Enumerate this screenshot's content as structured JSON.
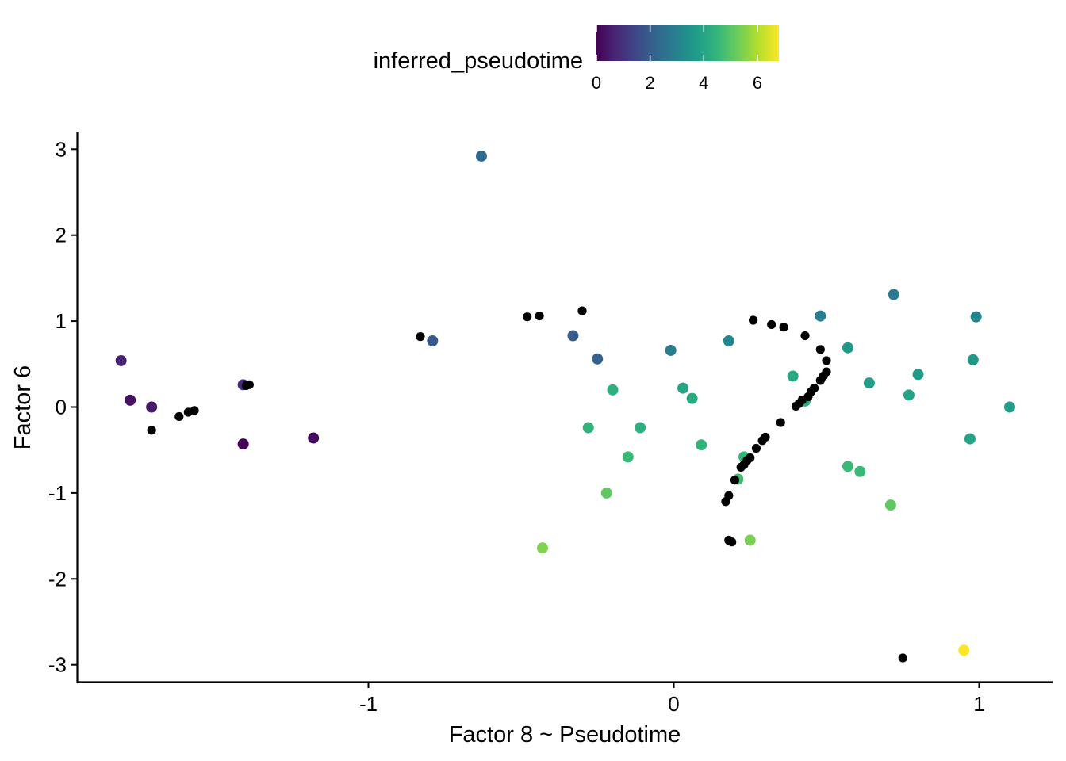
{
  "chart_data": {
    "type": "scatter",
    "title": "",
    "xlabel": "Factor 8  ~ Pseudotime",
    "ylabel": "Factor 6",
    "xlim": [
      -1.91,
      1.22
    ],
    "ylim": [
      -3.2,
      3.2
    ],
    "xticks": [
      -1,
      0,
      1
    ],
    "xtick_labels": [
      "-1",
      "0",
      "1"
    ],
    "yticks": [
      -3,
      -2,
      -1,
      0,
      1,
      2,
      3
    ],
    "ytick_labels": [
      "-3",
      "-2",
      "-1",
      "0",
      "1",
      "2",
      "3"
    ],
    "grid": false,
    "legend": {
      "title": "inferred_pseudotime",
      "placement": "top",
      "type": "colorbar",
      "range": [
        0,
        6.8
      ],
      "ticks": [
        0,
        2,
        4,
        6
      ],
      "tick_labels": [
        "0",
        "2",
        "4",
        "6"
      ],
      "colormap": "viridis",
      "stops": [
        "#440154",
        "#482878",
        "#3E4A89",
        "#31688E",
        "#26828E",
        "#1F9E89",
        "#35B779",
        "#6DCD59",
        "#B4DE2C",
        "#FDE725"
      ]
    },
    "black_color": "#000000",
    "colored_points": [
      {
        "x": -1.81,
        "y": 0.54,
        "t": 0.7
      },
      {
        "x": -1.78,
        "y": 0.08,
        "t": 0.3
      },
      {
        "x": -1.71,
        "y": 0.0,
        "t": 0.5
      },
      {
        "x": -1.41,
        "y": 0.26,
        "t": 0.8
      },
      {
        "x": -1.41,
        "y": -0.43,
        "t": 0.1
      },
      {
        "x": -1.18,
        "y": -0.36,
        "t": 0.2
      },
      {
        "x": -0.79,
        "y": 0.77,
        "t": 1.9
      },
      {
        "x": -0.63,
        "y": 2.92,
        "t": 2.3
      },
      {
        "x": -0.33,
        "y": 0.83,
        "t": 2.0
      },
      {
        "x": -0.25,
        "y": 0.56,
        "t": 2.1
      },
      {
        "x": -0.2,
        "y": 0.2,
        "t": 4.3
      },
      {
        "x": -0.28,
        "y": -0.24,
        "t": 4.4
      },
      {
        "x": -0.11,
        "y": -0.24,
        "t": 4.3
      },
      {
        "x": -0.15,
        "y": -0.58,
        "t": 4.6
      },
      {
        "x": -0.22,
        "y": -1.0,
        "t": 5.1
      },
      {
        "x": -0.43,
        "y": -1.64,
        "t": 5.5
      },
      {
        "x": -0.01,
        "y": 0.66,
        "t": 2.9
      },
      {
        "x": 0.03,
        "y": 0.22,
        "t": 4.0
      },
      {
        "x": 0.06,
        "y": 0.1,
        "t": 4.2
      },
      {
        "x": 0.09,
        "y": -0.44,
        "t": 4.4
      },
      {
        "x": 0.18,
        "y": 0.77,
        "t": 3.1
      },
      {
        "x": 0.21,
        "y": -0.84,
        "t": 4.7
      },
      {
        "x": 0.23,
        "y": -0.58,
        "t": 4.5
      },
      {
        "x": 0.25,
        "y": -1.55,
        "t": 5.4
      },
      {
        "x": 0.39,
        "y": 0.36,
        "t": 4.1
      },
      {
        "x": 0.43,
        "y": 0.07,
        "t": 4.2
      },
      {
        "x": 0.48,
        "y": 1.06,
        "t": 2.9
      },
      {
        "x": 0.57,
        "y": 0.69,
        "t": 3.6
      },
      {
        "x": 0.57,
        "y": -0.69,
        "t": 4.6
      },
      {
        "x": 0.61,
        "y": -0.75,
        "t": 4.6
      },
      {
        "x": 0.64,
        "y": 0.28,
        "t": 3.8
      },
      {
        "x": 0.72,
        "y": 1.31,
        "t": 2.8
      },
      {
        "x": 0.71,
        "y": -1.14,
        "t": 5.1
      },
      {
        "x": 0.77,
        "y": 0.14,
        "t": 3.9
      },
      {
        "x": 0.8,
        "y": 0.38,
        "t": 3.7
      },
      {
        "x": 0.97,
        "y": -0.37,
        "t": 3.9
      },
      {
        "x": 0.98,
        "y": 0.55,
        "t": 3.6
      },
      {
        "x": 0.99,
        "y": 1.05,
        "t": 3.1
      },
      {
        "x": 0.95,
        "y": -2.83,
        "t": 6.8
      },
      {
        "x": 1.1,
        "y": 0.0,
        "t": 3.8
      }
    ],
    "black_points": [
      {
        "x": -1.71,
        "y": -0.27
      },
      {
        "x": -1.62,
        "y": -0.11
      },
      {
        "x": -1.59,
        "y": -0.06
      },
      {
        "x": -1.57,
        "y": -0.04
      },
      {
        "x": -1.4,
        "y": 0.25
      },
      {
        "x": -1.39,
        "y": 0.26
      },
      {
        "x": -0.83,
        "y": 0.82
      },
      {
        "x": -0.48,
        "y": 1.05
      },
      {
        "x": -0.44,
        "y": 1.06
      },
      {
        "x": -0.3,
        "y": 1.12
      },
      {
        "x": 0.26,
        "y": 1.01
      },
      {
        "x": 0.32,
        "y": 0.96
      },
      {
        "x": 0.36,
        "y": 0.93
      },
      {
        "x": 0.43,
        "y": 0.83
      },
      {
        "x": 0.48,
        "y": 0.67
      },
      {
        "x": 0.5,
        "y": 0.54
      },
      {
        "x": 0.5,
        "y": 0.41
      },
      {
        "x": 0.49,
        "y": 0.36
      },
      {
        "x": 0.48,
        "y": 0.31
      },
      {
        "x": 0.46,
        "y": 0.22
      },
      {
        "x": 0.45,
        "y": 0.18
      },
      {
        "x": 0.44,
        "y": 0.12
      },
      {
        "x": 0.42,
        "y": 0.08
      },
      {
        "x": 0.41,
        "y": 0.04
      },
      {
        "x": 0.4,
        "y": 0.01
      },
      {
        "x": 0.35,
        "y": -0.18
      },
      {
        "x": 0.3,
        "y": -0.35
      },
      {
        "x": 0.29,
        "y": -0.39
      },
      {
        "x": 0.27,
        "y": -0.48
      },
      {
        "x": 0.25,
        "y": -0.59
      },
      {
        "x": 0.24,
        "y": -0.62
      },
      {
        "x": 0.23,
        "y": -0.67
      },
      {
        "x": 0.22,
        "y": -0.7
      },
      {
        "x": 0.2,
        "y": -0.85
      },
      {
        "x": 0.18,
        "y": -1.03
      },
      {
        "x": 0.17,
        "y": -1.1
      },
      {
        "x": 0.18,
        "y": -1.55
      },
      {
        "x": 0.19,
        "y": -1.57
      },
      {
        "x": 0.75,
        "y": -2.92
      }
    ]
  }
}
